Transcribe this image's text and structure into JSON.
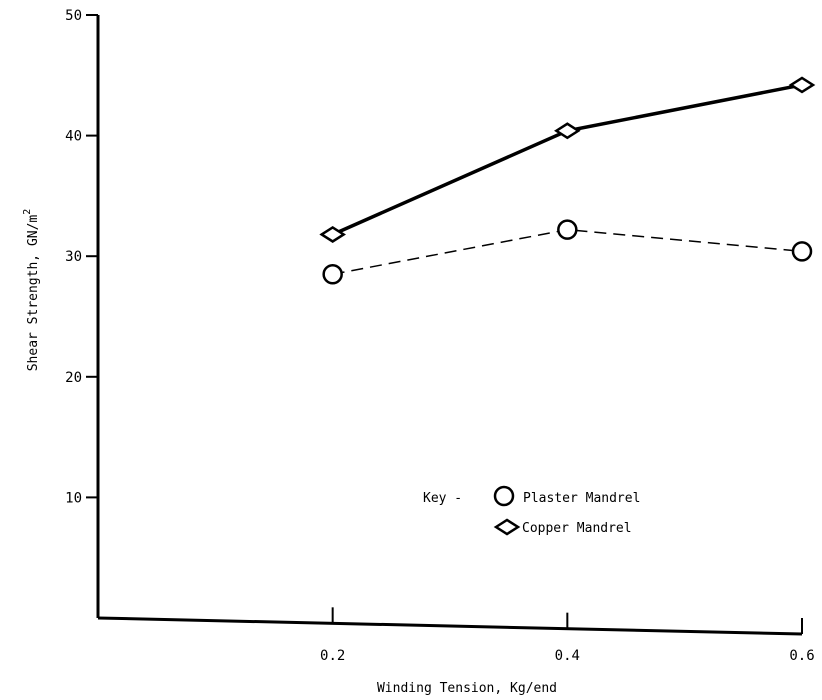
{
  "chart_data": {
    "type": "line",
    "title": "",
    "xlabel": "Winding Tension, Kg/end",
    "ylabel": "Shear Strength, GN/m",
    "ylabel_superscript": "2",
    "xlim": [
      0.0,
      0.6
    ],
    "ylim": [
      0,
      50
    ],
    "x_ticks": [
      "0.2",
      "0.4",
      "0.6"
    ],
    "y_ticks": [
      "10",
      "20",
      "30",
      "40",
      "50"
    ],
    "grid": false,
    "x": [
      0.2,
      0.4,
      0.6
    ],
    "series": [
      {
        "name": "Plaster Mandrel",
        "marker": "circle",
        "line": "dashed",
        "values": [
          28.5,
          32.2,
          30.4
        ]
      },
      {
        "name": "Copper Mandrel",
        "marker": "diamond",
        "line": "solid",
        "values": [
          31.8,
          40.4,
          44.2
        ]
      }
    ],
    "legend": {
      "prefix": "Key -",
      "entries": [
        "Plaster Mandrel",
        "Copper Mandrel"
      ]
    },
    "colors": {
      "ink": "#000000",
      "background": "#ffffff"
    }
  }
}
